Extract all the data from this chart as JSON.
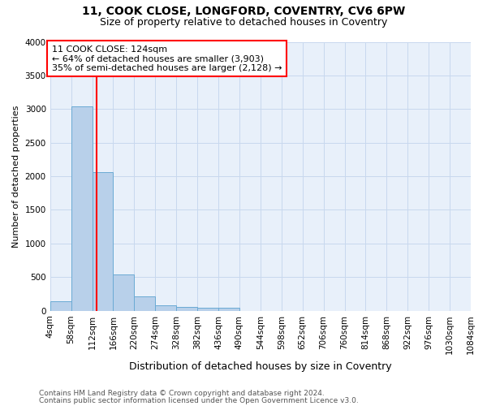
{
  "title_line1": "11, COOK CLOSE, LONGFORD, COVENTRY, CV6 6PW",
  "title_line2": "Size of property relative to detached houses in Coventry",
  "xlabel": "Distribution of detached houses by size in Coventry",
  "ylabel": "Number of detached properties",
  "bar_color": "#b8d0ea",
  "bar_edge_color": "#6aaad4",
  "bin_edges": [
    4,
    58,
    112,
    166,
    220,
    274,
    328,
    382,
    436,
    490,
    544,
    598,
    652,
    706,
    760,
    814,
    868,
    922,
    976,
    1030,
    1084
  ],
  "bar_heights": [
    140,
    3040,
    2060,
    545,
    210,
    80,
    55,
    50,
    40,
    0,
    0,
    0,
    0,
    0,
    0,
    0,
    0,
    0,
    0,
    0
  ],
  "x_tick_labels": [
    "4sqm",
    "58sqm",
    "112sqm",
    "166sqm",
    "220sqm",
    "274sqm",
    "328sqm",
    "382sqm",
    "436sqm",
    "490sqm",
    "544sqm",
    "598sqm",
    "652sqm",
    "706sqm",
    "760sqm",
    "814sqm",
    "868sqm",
    "922sqm",
    "976sqm",
    "1030sqm",
    "1084sqm"
  ],
  "ylim": [
    0,
    4000
  ],
  "yticks": [
    0,
    500,
    1000,
    1500,
    2000,
    2500,
    3000,
    3500,
    4000
  ],
  "vline_x": 124,
  "annotation_text": "11 COOK CLOSE: 124sqm\n← 64% of detached houses are smaller (3,903)\n35% of semi-detached houses are larger (2,128) →",
  "annotation_box_color": "white",
  "annotation_box_edge": "red",
  "vline_color": "red",
  "grid_color": "#c8d8ee",
  "bg_color": "#e8f0fa",
  "footer_line1": "Contains HM Land Registry data © Crown copyright and database right 2024.",
  "footer_line2": "Contains public sector information licensed under the Open Government Licence v3.0.",
  "title_fontsize": 10,
  "subtitle_fontsize": 9,
  "xlabel_fontsize": 9,
  "ylabel_fontsize": 8,
  "tick_fontsize": 7.5,
  "annotation_fontsize": 8,
  "footer_fontsize": 6.5
}
